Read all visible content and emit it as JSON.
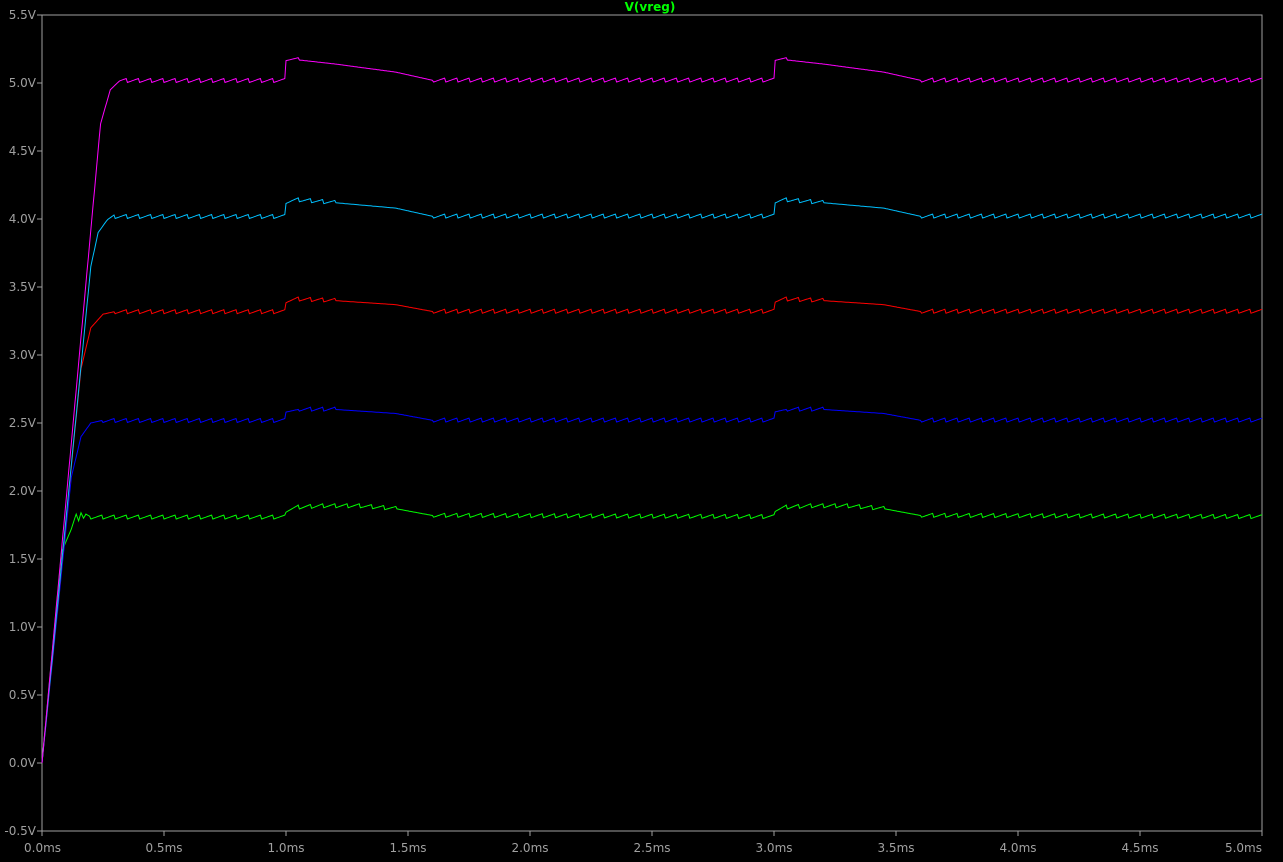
{
  "title": "V(vreg)",
  "chart_data": {
    "type": "line",
    "title": "V(vreg)",
    "xlabel": "",
    "ylabel": "",
    "xlim": [
      0.0,
      5.0
    ],
    "ylim": [
      -0.5,
      5.5
    ],
    "x_unit": "ms",
    "y_unit": "V",
    "x_ticks": [
      0.0,
      0.5,
      1.0,
      1.5,
      2.0,
      2.5,
      3.0,
      3.5,
      4.0,
      4.5,
      5.0
    ],
    "x_tick_labels": [
      "0.0ms",
      "0.5ms",
      "1.0ms",
      "1.5ms",
      "2.0ms",
      "2.5ms",
      "3.0ms",
      "3.5ms",
      "4.0ms",
      "4.5ms",
      "5.0ms"
    ],
    "y_ticks": [
      -0.5,
      0.0,
      0.5,
      1.0,
      1.5,
      2.0,
      2.5,
      3.0,
      3.5,
      4.0,
      4.5,
      5.0,
      5.5
    ],
    "y_tick_labels": [
      "-0.5V",
      "0.0V",
      "0.5V",
      "1.0V",
      "1.5V",
      "2.0V",
      "2.5V",
      "3.0V",
      "3.5V",
      "4.0V",
      "4.5V",
      "5.0V",
      "5.5V"
    ],
    "grid": false,
    "background": "#000000",
    "axis_color": "#a0a0a0",
    "title_color": "#00ff00",
    "ripple_amplitude_v": 0.02,
    "ripple_period_ms": 0.05,
    "series": [
      {
        "color": "#00ff00",
        "points": [
          [
            0.0,
            0.0
          ],
          [
            0.08,
            1.55
          ],
          [
            0.12,
            1.72
          ],
          [
            0.14,
            1.83
          ],
          [
            0.15,
            1.78
          ],
          [
            0.16,
            1.84
          ],
          [
            0.17,
            1.8
          ],
          [
            0.18,
            1.83
          ],
          [
            0.2,
            1.81
          ],
          [
            1.0,
            1.81
          ],
          [
            1.0,
            1.86
          ],
          [
            1.05,
            1.88
          ],
          [
            1.15,
            1.89
          ],
          [
            1.3,
            1.89
          ],
          [
            1.45,
            1.87
          ],
          [
            1.6,
            1.82
          ],
          [
            3.0,
            1.81
          ],
          [
            3.0,
            1.86
          ],
          [
            3.05,
            1.88
          ],
          [
            3.15,
            1.89
          ],
          [
            3.3,
            1.89
          ],
          [
            3.45,
            1.87
          ],
          [
            3.6,
            1.82
          ],
          [
            5.0,
            1.81
          ]
        ]
      },
      {
        "color": "#0000ff",
        "points": [
          [
            0.0,
            0.0
          ],
          [
            0.12,
            2.1
          ],
          [
            0.16,
            2.4
          ],
          [
            0.2,
            2.5
          ],
          [
            0.25,
            2.52
          ],
          [
            1.0,
            2.52
          ],
          [
            1.0,
            2.58
          ],
          [
            1.05,
            2.6
          ],
          [
            1.2,
            2.6
          ],
          [
            1.45,
            2.57
          ],
          [
            1.6,
            2.52
          ],
          [
            3.0,
            2.52
          ],
          [
            3.0,
            2.58
          ],
          [
            3.05,
            2.6
          ],
          [
            3.2,
            2.6
          ],
          [
            3.45,
            2.57
          ],
          [
            3.6,
            2.52
          ],
          [
            5.0,
            2.52
          ]
        ]
      },
      {
        "color": "#ff0000",
        "points": [
          [
            0.0,
            0.0
          ],
          [
            0.16,
            2.9
          ],
          [
            0.2,
            3.2
          ],
          [
            0.25,
            3.3
          ],
          [
            0.3,
            3.32
          ],
          [
            1.0,
            3.32
          ],
          [
            1.0,
            3.4
          ],
          [
            1.05,
            3.41
          ],
          [
            1.2,
            3.4
          ],
          [
            1.45,
            3.37
          ],
          [
            1.6,
            3.32
          ],
          [
            3.0,
            3.32
          ],
          [
            3.0,
            3.4
          ],
          [
            3.05,
            3.41
          ],
          [
            3.2,
            3.4
          ],
          [
            3.45,
            3.37
          ],
          [
            3.6,
            3.32
          ],
          [
            5.0,
            3.32
          ]
        ]
      },
      {
        "color": "#00c0ff",
        "points": [
          [
            0.0,
            0.0
          ],
          [
            0.2,
            3.65
          ],
          [
            0.23,
            3.9
          ],
          [
            0.27,
            4.0
          ],
          [
            0.3,
            4.02
          ],
          [
            1.0,
            4.02
          ],
          [
            1.0,
            4.13
          ],
          [
            1.05,
            4.14
          ],
          [
            1.2,
            4.12
          ],
          [
            1.45,
            4.08
          ],
          [
            1.6,
            4.02
          ],
          [
            3.0,
            4.02
          ],
          [
            3.0,
            4.13
          ],
          [
            3.05,
            4.14
          ],
          [
            3.2,
            4.12
          ],
          [
            3.45,
            4.08
          ],
          [
            3.6,
            4.02
          ],
          [
            5.0,
            4.02
          ]
        ]
      },
      {
        "color": "#ff00ff",
        "points": [
          [
            0.0,
            0.0
          ],
          [
            0.24,
            4.7
          ],
          [
            0.28,
            4.95
          ],
          [
            0.32,
            5.02
          ],
          [
            1.0,
            5.02
          ],
          [
            1.0,
            5.18
          ],
          [
            1.05,
            5.17
          ],
          [
            1.2,
            5.14
          ],
          [
            1.45,
            5.08
          ],
          [
            1.6,
            5.02
          ],
          [
            3.0,
            5.02
          ],
          [
            3.0,
            5.18
          ],
          [
            3.05,
            5.17
          ],
          [
            3.2,
            5.14
          ],
          [
            3.45,
            5.08
          ],
          [
            3.6,
            5.02
          ],
          [
            5.0,
            5.02
          ]
        ]
      }
    ]
  }
}
